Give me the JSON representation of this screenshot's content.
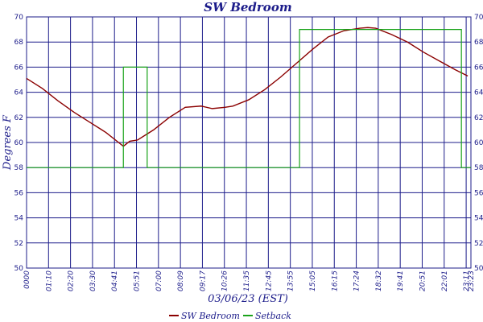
{
  "chart_data": {
    "type": "line",
    "title": "SW Bedroom",
    "xlabel": "03/06/23 (EST)",
    "ylabel": "Degrees F",
    "ylim": [
      50,
      70
    ],
    "yticks": [
      "50",
      "52",
      "54",
      "56",
      "58",
      "60",
      "62",
      "64",
      "66",
      "68",
      "70"
    ],
    "xtick_labels": [
      "0000",
      "01:10",
      "02:20",
      "03:30",
      "04:41",
      "05:51",
      "07:00",
      "08:09",
      "09:17",
      "10:26",
      "11:35",
      "12:45",
      "13:55",
      "15:05",
      "16:15",
      "17:24",
      "18:32",
      "19:41",
      "20:51",
      "22:01",
      "23:11",
      "23:23"
    ],
    "grid": true,
    "legend_position": "bottom",
    "series": [
      {
        "name": "SW Bedroom",
        "color": "#8b0000",
        "points": [
          [
            0,
            65.1
          ],
          [
            1,
            64.3
          ],
          [
            2,
            63.3
          ],
          [
            3,
            62.4
          ],
          [
            4,
            61.6
          ],
          [
            5,
            60.8
          ],
          [
            5.8,
            60.0
          ],
          [
            6.1,
            59.7
          ],
          [
            6.5,
            60.1
          ],
          [
            7,
            60.2
          ],
          [
            8,
            61.0
          ],
          [
            9,
            62.0
          ],
          [
            10,
            62.8
          ],
          [
            11,
            62.9
          ],
          [
            11.7,
            62.7
          ],
          [
            12.5,
            62.8
          ],
          [
            13,
            62.9
          ],
          [
            14,
            63.4
          ],
          [
            15,
            64.2
          ],
          [
            16,
            65.2
          ],
          [
            17,
            66.3
          ],
          [
            18,
            67.4
          ],
          [
            19,
            68.4
          ],
          [
            20,
            68.9
          ],
          [
            21,
            69.1
          ],
          [
            21.5,
            69.15
          ],
          [
            22,
            69.1
          ],
          [
            23,
            68.6
          ],
          [
            24,
            68.0
          ],
          [
            25,
            67.2
          ],
          [
            26,
            66.5
          ],
          [
            27,
            65.8
          ],
          [
            27.8,
            65.3
          ]
        ]
      },
      {
        "name": "Setback",
        "color": "#1aa31a",
        "points": [
          [
            0,
            58
          ],
          [
            6.1,
            58
          ],
          [
            6.1,
            66
          ],
          [
            7.6,
            66
          ],
          [
            7.6,
            58
          ],
          [
            17.2,
            58
          ],
          [
            17.2,
            69
          ],
          [
            27.4,
            69
          ],
          [
            27.4,
            58
          ],
          [
            28,
            58
          ]
        ]
      }
    ]
  }
}
